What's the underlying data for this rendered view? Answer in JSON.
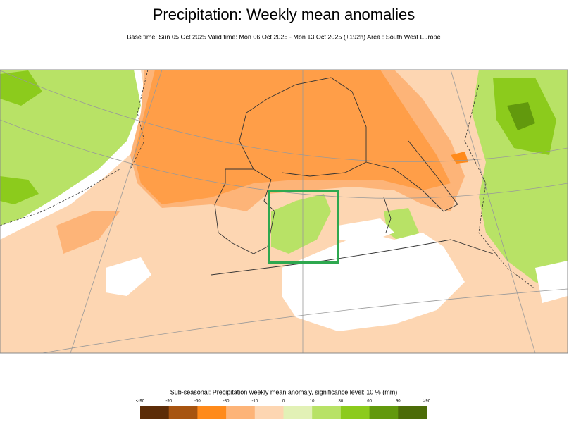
{
  "header": {
    "title": "Precipitation: Weekly mean anomalies",
    "subtitle": "Base time: Sun 05 Oct 2025 Valid time: Mon 06 Oct 2025 - Mon 13 Oct 2025 (+192h) Area : South West Europe"
  },
  "legend": {
    "title": "Sub-seasonal: Precipitation weekly mean anomaly, significance level: 10 % (mm)",
    "labels": [
      "<-90",
      "-90",
      "-60",
      "-30",
      "-10",
      "0",
      "10",
      "30",
      "60",
      "90",
      ">90"
    ],
    "colors": [
      "#5c2c07",
      "#a75410",
      "#ff8a1a",
      "#fdb478",
      "#fdd6b2",
      "#e2f1b6",
      "#b8e266",
      "#8ccb1c",
      "#62990d",
      "#4c6c08"
    ]
  }
}
